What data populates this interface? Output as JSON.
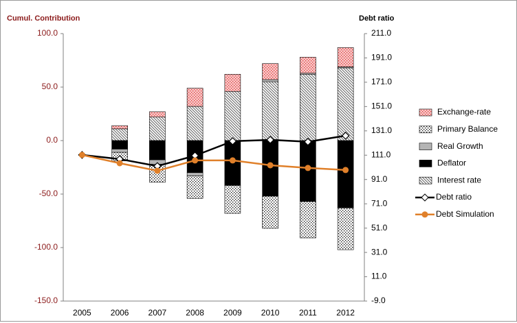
{
  "chart_data": {
    "type": "stacked-bar-line",
    "y_label": "Cumul. Contribution",
    "y2_label": "Debt ratio",
    "categories": [
      "2005",
      "2006",
      "2007",
      "2008",
      "2009",
      "2010",
      "2011",
      "2012"
    ],
    "ylim": [
      -150,
      100
    ],
    "yticks": [
      {
        "value": 100,
        "label": "100.0"
      },
      {
        "value": 50,
        "label": "50.0"
      },
      {
        "value": 0,
        "label": "0.0"
      },
      {
        "value": -50,
        "label": "-50.0"
      },
      {
        "value": -100,
        "label": "-100.0"
      },
      {
        "value": -150,
        "label": "-150.0"
      }
    ],
    "y2lim": [
      -9,
      211
    ],
    "y2ticks": [
      {
        "value": 211,
        "label": "211.0"
      },
      {
        "value": 191,
        "label": "191.0"
      },
      {
        "value": 171,
        "label": "171.0"
      },
      {
        "value": 151,
        "label": "151.0"
      },
      {
        "value": 131,
        "label": "131.0"
      },
      {
        "value": 111,
        "label": "111.0"
      },
      {
        "value": 91,
        "label": "91.0"
      },
      {
        "value": 71,
        "label": "71.0"
      },
      {
        "value": 51,
        "label": "51.0"
      },
      {
        "value": 31,
        "label": "31.0"
      },
      {
        "value": 11,
        "label": "11.0"
      },
      {
        "value": -9,
        "label": "-9.0"
      }
    ],
    "series": [
      {
        "name": "Exchange-rate",
        "kind": "bar",
        "pattern": "dots",
        "color": "#e03030",
        "values": [
          null,
          3,
          5,
          17,
          16,
          15,
          15,
          18
        ]
      },
      {
        "name": "Primary Balance",
        "kind": "bar",
        "pattern": "dots",
        "color": "#000000",
        "values": [
          null,
          -8,
          -17,
          -21,
          -26,
          -30,
          -34,
          -39
        ]
      },
      {
        "name": "Real Growth",
        "kind": "bar",
        "pattern": "solid",
        "color": "#b4b4b4",
        "values": [
          null,
          -3,
          -4,
          -3,
          0,
          2,
          1,
          1
        ]
      },
      {
        "name": "Deflator",
        "kind": "bar",
        "pattern": "solid",
        "color": "#000000",
        "values": [
          null,
          -8,
          -18,
          -30,
          -42,
          -52,
          -57,
          -63
        ]
      },
      {
        "name": "Interest rate",
        "kind": "bar",
        "pattern": "hatch",
        "color": "#606060",
        "values": [
          null,
          11,
          22,
          32,
          46,
          55,
          62,
          68
        ]
      },
      {
        "name": "Debt ratio",
        "kind": "line",
        "marker": "diamond",
        "axis": "y2",
        "color": "#000000",
        "values": [
          111.2,
          107.8,
          102.0,
          110.6,
          122.5,
          123.6,
          122.0,
          127.0
        ]
      },
      {
        "name": "Debt Simulation",
        "kind": "line",
        "marker": "circle",
        "axis": "y2",
        "color": "#e0802a",
        "values": [
          111.2,
          104.4,
          98.2,
          106.7,
          106.7,
          102.7,
          100.5,
          98.8
        ]
      }
    ]
  }
}
